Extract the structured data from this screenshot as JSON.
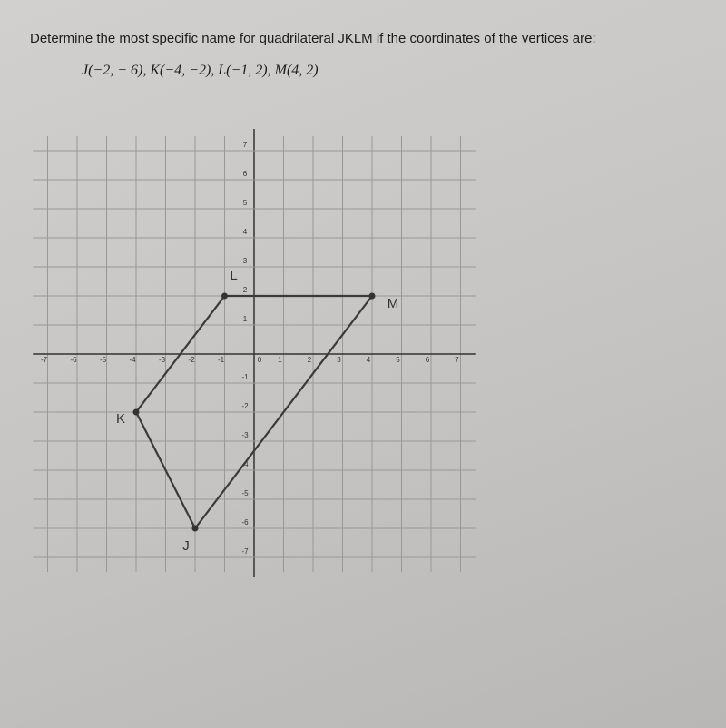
{
  "question": "Determine the most specific name for quadrilateral JKLM if the coordinates of the vertices are:",
  "coordinates": "J(−2, − 6), K(−4, −2), L(−1, 2), M(4, 2)",
  "graph": {
    "xlim": [
      -7.5,
      7.5
    ],
    "ylim": [
      -7.5,
      7.5
    ],
    "xticks": [
      -7,
      -6,
      -5,
      -4,
      -3,
      -2,
      -1,
      0,
      1,
      2,
      3,
      4,
      5,
      6,
      7
    ],
    "yticks": [
      7,
      6,
      5,
      4,
      3,
      2,
      1,
      -1,
      -2,
      -3,
      -4,
      -5,
      -6,
      -7
    ],
    "vertices": [
      {
        "label": "J",
        "x": -2,
        "y": -6
      },
      {
        "label": "K",
        "x": -4,
        "y": -2
      },
      {
        "label": "L",
        "x": -1,
        "y": 2
      },
      {
        "label": "M",
        "x": 4,
        "y": 2
      }
    ]
  }
}
